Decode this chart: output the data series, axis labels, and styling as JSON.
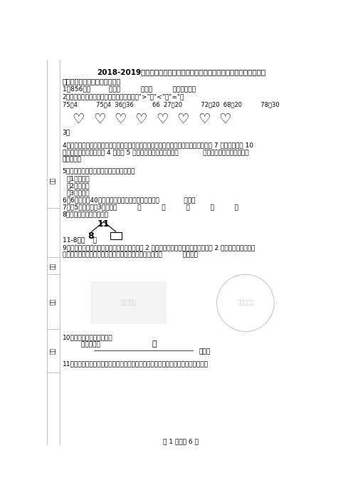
{
  "title": "2018-2019年邢台市南宫市私立实验小学一年级上册数学期末总复习无答案",
  "bg_color": "#ffffff",
  "section1": "一、想一想，填一填（填空题）",
  "q1": "1．856里有         个百，          个十，          个一组成的。",
  "q2_label": "2．想一想，算一算，比一比。在横线里填上\">\"、\"<\"或\"=\"。",
  "q2_math": "75＋4          75－4  36＋36          66  27－20          72－20  68－20          78－30",
  "q3_label": "3．",
  "q4_1": "4．用一个长方形和一个直角三角形正好相拼成一个直角梯形，拼成的直角梯形的上底是 7 厘米，下底是 10",
  "q4_2": "厘米，两条腰的长分别是 4 厘米和 5 厘米，这个长方形的周长是            厘米，直角三角形的面积是",
  "q4_3": "平方厘米．",
  "q5": "5．在下面各数的后面连续数出五个数来。",
  "q5_1": "（1）三十四",
  "q5_2": "（2）五十八",
  "q5_3": "（3）九十五",
  "q6": "6．6个老师带40个同学去电影院，那么他们一共要买            张票。",
  "q7": "7．写5个十位上是3的两位数          、          、          、          、          。",
  "q8": "8．（从上到下依次填写）",
  "q8_tree_top": "11",
  "q8_left": "8",
  "q8_ans": "11-8＝（    ）",
  "q9_1": "9．一个牧羊人去放羊，第一天数一数发现少了 2 只羊，第二天又数一数，发现又少了 2 只羊，他正着急，忽",
  "q9_2": "然发现羊群里有只披着羊皮的狼。想一想，狼这两天吃了（          ）只羊。",
  "q10a": "10．先提出问题，再计算．",
  "q10b": "         多少只羊？",
  "q10c": "（只）",
  "q11": "11．一年级一班有在各项目中获得名次的人数如下图，请根据统计结果填写统计表．",
  "footer": "第 1 页，共 6 页",
  "hearts_count": 8,
  "heart_char": "♡",
  "sidebar_labels": [
    "分数",
    "姓名",
    "题号",
    "班级"
  ]
}
